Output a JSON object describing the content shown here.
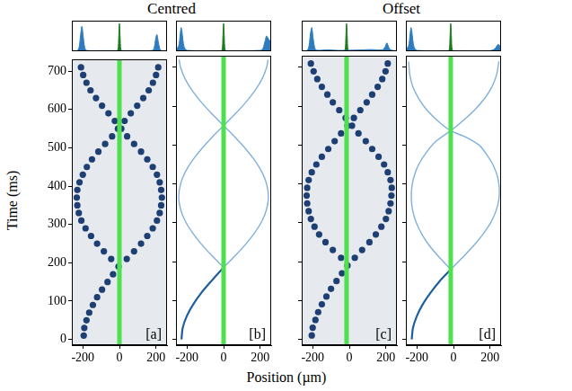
{
  "figure": {
    "column_titles": [
      "Centred",
      "Offset"
    ],
    "xlabel": "Position (µm)",
    "ylabel": "Time (ms)"
  },
  "chart_data": [
    {
      "type": "scatter",
      "panel_label": "[a]",
      "xlim": [
        -260,
        260
      ],
      "xticks": [
        -200,
        0,
        200
      ],
      "ylim": [
        -15,
        730
      ],
      "yticks": [
        0,
        100,
        200,
        300,
        400,
        500,
        600,
        700
      ],
      "grid": false,
      "tick_labels": true,
      "barrier": {
        "position": 0,
        "color": "#4fe04f"
      },
      "series": [
        {
          "color": "#1d3f73",
          "marker": "circle",
          "x": [
            -195,
            -192,
            -180,
            -165,
            -145,
            -122,
            -95,
            -65,
            -35,
            -5
          ],
          "values": [
            10,
            30,
            50,
            70,
            90,
            110,
            130,
            150,
            170,
            190
          ]
        },
        {
          "color": "#1d3f73",
          "marker": "circle",
          "x": [
            40,
            80,
            118,
            152,
            182,
            205,
            220,
            228,
            232,
            228,
            220,
            205,
            182,
            152,
            118,
            80,
            42,
            10,
            -25,
            -60,
            -95,
            -128,
            -158,
            -180,
            -198,
            -210
          ],
          "values": [
            210,
            230,
            250,
            270,
            290,
            310,
            330,
            350,
            370,
            390,
            410,
            430,
            450,
            470,
            490,
            510,
            530,
            550,
            570,
            590,
            610,
            630,
            650,
            670,
            690,
            710
          ]
        },
        {
          "color": "#1d3f73",
          "marker": "circle",
          "x": [
            -45,
            -85,
            -122,
            -155,
            -185,
            -208,
            -222,
            -230,
            -233,
            -230,
            -218,
            -200,
            -178,
            -150,
            -115,
            -78,
            -40,
            -8,
            28,
            62,
            97,
            130,
            160,
            183,
            200,
            212
          ],
          "values": [
            210,
            230,
            250,
            270,
            290,
            310,
            330,
            350,
            370,
            390,
            410,
            430,
            450,
            470,
            490,
            510,
            530,
            550,
            570,
            590,
            610,
            630,
            650,
            670,
            690,
            710
          ]
        }
      ],
      "histogram": {
        "type": "area",
        "xlim": [
          -260,
          260
        ],
        "ylim": [
          0,
          1.1
        ],
        "tick_labels": false,
        "series": [
          {
            "color": "#2e7bbf",
            "x": [
              -260,
              -230,
              -220,
              -212,
              -205,
              -198,
              -190,
              -180,
              -100,
              0,
              100,
              180,
              190,
              198,
              205,
              212,
              220,
              230,
              260
            ],
            "values": [
              0,
              0.02,
              0.15,
              0.6,
              0.9,
              0.55,
              0.15,
              0.03,
              0.02,
              0.02,
              0.02,
              0.03,
              0.12,
              0.45,
              0.6,
              0.35,
              0.1,
              0.02,
              0
            ]
          },
          {
            "color": "#1a7a1a",
            "x": [
              -20,
              -8,
              -4,
              0,
              4,
              8,
              20
            ],
            "values": [
              0,
              0.05,
              0.5,
              1,
              0.5,
              0.05,
              0
            ]
          }
        ]
      }
    },
    {
      "type": "line",
      "panel_label": "[b]",
      "xlim": [
        -260,
        260
      ],
      "xticks": [
        -200,
        0,
        200
      ],
      "ylim": [
        -15,
        730
      ],
      "yticks": [
        0,
        100,
        200,
        300,
        400,
        500,
        600,
        700
      ],
      "grid": false,
      "tick_labels": "x",
      "barrier": {
        "position": 0,
        "color": "#4fe04f"
      },
      "series": [
        {
          "color": "#1f5f9e",
          "line_style": "solid",
          "x": [
            -230,
            -223,
            -201,
            -166,
            -121,
            -67,
            0
          ],
          "values": [
            0,
            30,
            60,
            90,
            120,
            150,
            185
          ]
        },
        {
          "color": "#7fb0dc",
          "line_style": "solid",
          "x": [
            0,
            63,
            121,
            171,
            210,
            235,
            245,
            235,
            210,
            171,
            121,
            63,
            0,
            -63,
            -121,
            -171,
            -210,
            -235,
            -243
          ],
          "values": [
            185,
            215,
            245,
            275,
            305,
            335,
            367,
            400,
            430,
            460,
            490,
            520,
            550,
            580,
            610,
            640,
            670,
            700,
            720
          ]
        },
        {
          "color": "#7fb0dc",
          "line_style": "solid",
          "x": [
            0,
            -63,
            -121,
            -171,
            -210,
            -235,
            -245,
            -235,
            -210,
            -171,
            -121,
            -63,
            0,
            63,
            121,
            171,
            210,
            235,
            243
          ],
          "values": [
            185,
            215,
            245,
            275,
            305,
            335,
            367,
            400,
            430,
            460,
            490,
            520,
            550,
            580,
            610,
            640,
            670,
            700,
            720
          ]
        }
      ],
      "histogram": {
        "type": "area",
        "xlim": [
          -260,
          260
        ],
        "ylim": [
          0,
          1.1
        ],
        "tick_labels": false,
        "series": [
          {
            "color": "#2e7bbf",
            "x": [
              -260,
              -245,
              -238,
              -232,
              -228,
              -222,
              -215,
              -200,
              0,
              200,
              215,
              222,
              228,
              234,
              240,
              250,
              260
            ],
            "values": [
              0.05,
              0.2,
              0.55,
              0.85,
              0.75,
              0.4,
              0.15,
              0.03,
              0.02,
              0.03,
              0.1,
              0.25,
              0.4,
              0.55,
              0.5,
              0.4,
              0.35
            ]
          },
          {
            "color": "#1a7a1a",
            "x": [
              -20,
              -8,
              -4,
              0,
              4,
              8,
              20
            ],
            "values": [
              0,
              0.05,
              0.5,
              1,
              0.5,
              0.05,
              0
            ]
          }
        ]
      }
    },
    {
      "type": "scatter",
      "panel_label": "[c]",
      "xlim": [
        -260,
        260
      ],
      "xticks": [
        -200,
        0,
        200
      ],
      "ylim": [
        -15,
        730
      ],
      "yticks": [
        0,
        100,
        200,
        300,
        400,
        500,
        600,
        700
      ],
      "grid": false,
      "tick_labels": "x",
      "barrier": {
        "position": -15,
        "color": "#4fe04f"
      },
      "series": [
        {
          "color": "#1d3f73",
          "marker": "circle",
          "x": [
            -205,
            -200,
            -185,
            -170,
            -150,
            -125,
            -100,
            -70,
            -40,
            -10
          ],
          "values": [
            10,
            30,
            50,
            70,
            90,
            110,
            130,
            150,
            170,
            190
          ]
        },
        {
          "color": "#1d3f73",
          "marker": "circle",
          "x": [
            30,
            70,
            110,
            145,
            175,
            200,
            215,
            225,
            230,
            232,
            225,
            210,
            190,
            160,
            125,
            90,
            50,
            15,
            -20,
            -55,
            -90,
            -120,
            -150,
            -175,
            -195,
            -210
          ],
          "values": [
            210,
            230,
            250,
            270,
            290,
            310,
            330,
            350,
            370,
            390,
            410,
            430,
            450,
            470,
            490,
            510,
            530,
            550,
            570,
            590,
            610,
            630,
            650,
            670,
            690,
            710
          ]
        },
        {
          "color": "#1d3f73",
          "marker": "circle",
          "x": [
            -45,
            -90,
            -130,
            -165,
            -190,
            -210,
            -222,
            -230,
            -233,
            -230,
            -222,
            -205,
            -180,
            -150,
            -115,
            -80,
            -45,
            -10,
            25,
            60,
            95,
            125,
            155,
            180,
            198,
            210
          ],
          "values": [
            210,
            230,
            250,
            270,
            290,
            310,
            330,
            350,
            370,
            390,
            410,
            430,
            450,
            470,
            490,
            510,
            530,
            550,
            570,
            590,
            610,
            630,
            650,
            670,
            690,
            710
          ]
        }
      ],
      "histogram": {
        "type": "area",
        "xlim": [
          -260,
          260
        ],
        "ylim": [
          0,
          1.1
        ],
        "tick_labels": false,
        "series": [
          {
            "color": "#2e7bbf",
            "x": [
              -260,
              -230,
              -220,
              -212,
              -205,
              -198,
              -190,
              -180,
              -120,
              -60,
              40,
              120,
              180,
              195,
              205,
              212,
              220,
              235,
              260
            ],
            "values": [
              0,
              0.03,
              0.2,
              0.65,
              0.85,
              0.5,
              0.15,
              0.04,
              0.05,
              0.03,
              0.04,
              0.06,
              0.05,
              0.15,
              0.3,
              0.2,
              0.08,
              0.03,
              0.02
            ]
          },
          {
            "color": "#1a7a1a",
            "x": [
              -35,
              -23,
              -19,
              -15,
              -11,
              -7,
              5
            ],
            "values": [
              0,
              0.05,
              0.5,
              1,
              0.5,
              0.05,
              0
            ]
          }
        ]
      }
    },
    {
      "type": "line",
      "panel_label": "[d]",
      "xlim": [
        -260,
        260
      ],
      "xticks": [
        -200,
        0,
        200
      ],
      "ylim": [
        -15,
        730
      ],
      "yticks": [
        0,
        100,
        200,
        300,
        400,
        500,
        600,
        700
      ],
      "grid": false,
      "tick_labels": "x",
      "barrier": {
        "position": -15,
        "color": "#4fe04f"
      },
      "series": [
        {
          "color": "#1f5f9e",
          "line_style": "solid",
          "x": [
            -228,
            -221,
            -200,
            -168,
            -125,
            -75,
            -15
          ],
          "values": [
            0,
            30,
            60,
            90,
            120,
            150,
            180
          ]
        },
        {
          "color": "#7fb0dc",
          "line_style": "solid",
          "x": [
            -15,
            48,
            108,
            160,
            203,
            232,
            248,
            250,
            240,
            215,
            175,
            140,
            70,
            -15,
            -80,
            -145,
            -190,
            -222,
            -238,
            -245
          ],
          "values": [
            180,
            210,
            240,
            270,
            300,
            330,
            360,
            390,
            420,
            450,
            480,
            500,
            520,
            537,
            560,
            590,
            620,
            650,
            680,
            715
          ]
        },
        {
          "color": "#7fb0dc",
          "line_style": "solid",
          "x": [
            -15,
            -75,
            -130,
            -172,
            -203,
            -222,
            -230,
            -228,
            -215,
            -190,
            -150,
            -95,
            -15,
            45,
            115,
            170,
            210,
            235,
            248
          ],
          "values": [
            180,
            210,
            240,
            270,
            300,
            330,
            360,
            390,
            420,
            450,
            480,
            510,
            537,
            560,
            590,
            620,
            650,
            680,
            715
          ]
        }
      ],
      "histogram": {
        "type": "area",
        "xlim": [
          -260,
          260
        ],
        "ylim": [
          0,
          1.1
        ],
        "tick_labels": false,
        "series": [
          {
            "color": "#2e7bbf",
            "x": [
              -260,
              -245,
              -238,
              -232,
              -228,
              -222,
              -215,
              -200,
              0,
              200,
              220,
              230,
              238,
              245,
              252,
              260
            ],
            "values": [
              0.05,
              0.2,
              0.55,
              0.85,
              0.75,
              0.4,
              0.15,
              0.03,
              0.02,
              0.02,
              0.06,
              0.12,
              0.2,
              0.25,
              0.2,
              0.15
            ]
          },
          {
            "color": "#1a7a1a",
            "x": [
              -35,
              -23,
              -19,
              -15,
              -11,
              -7,
              5
            ],
            "values": [
              0,
              0.05,
              0.5,
              1,
              0.5,
              0.05,
              0
            ]
          }
        ]
      }
    }
  ]
}
